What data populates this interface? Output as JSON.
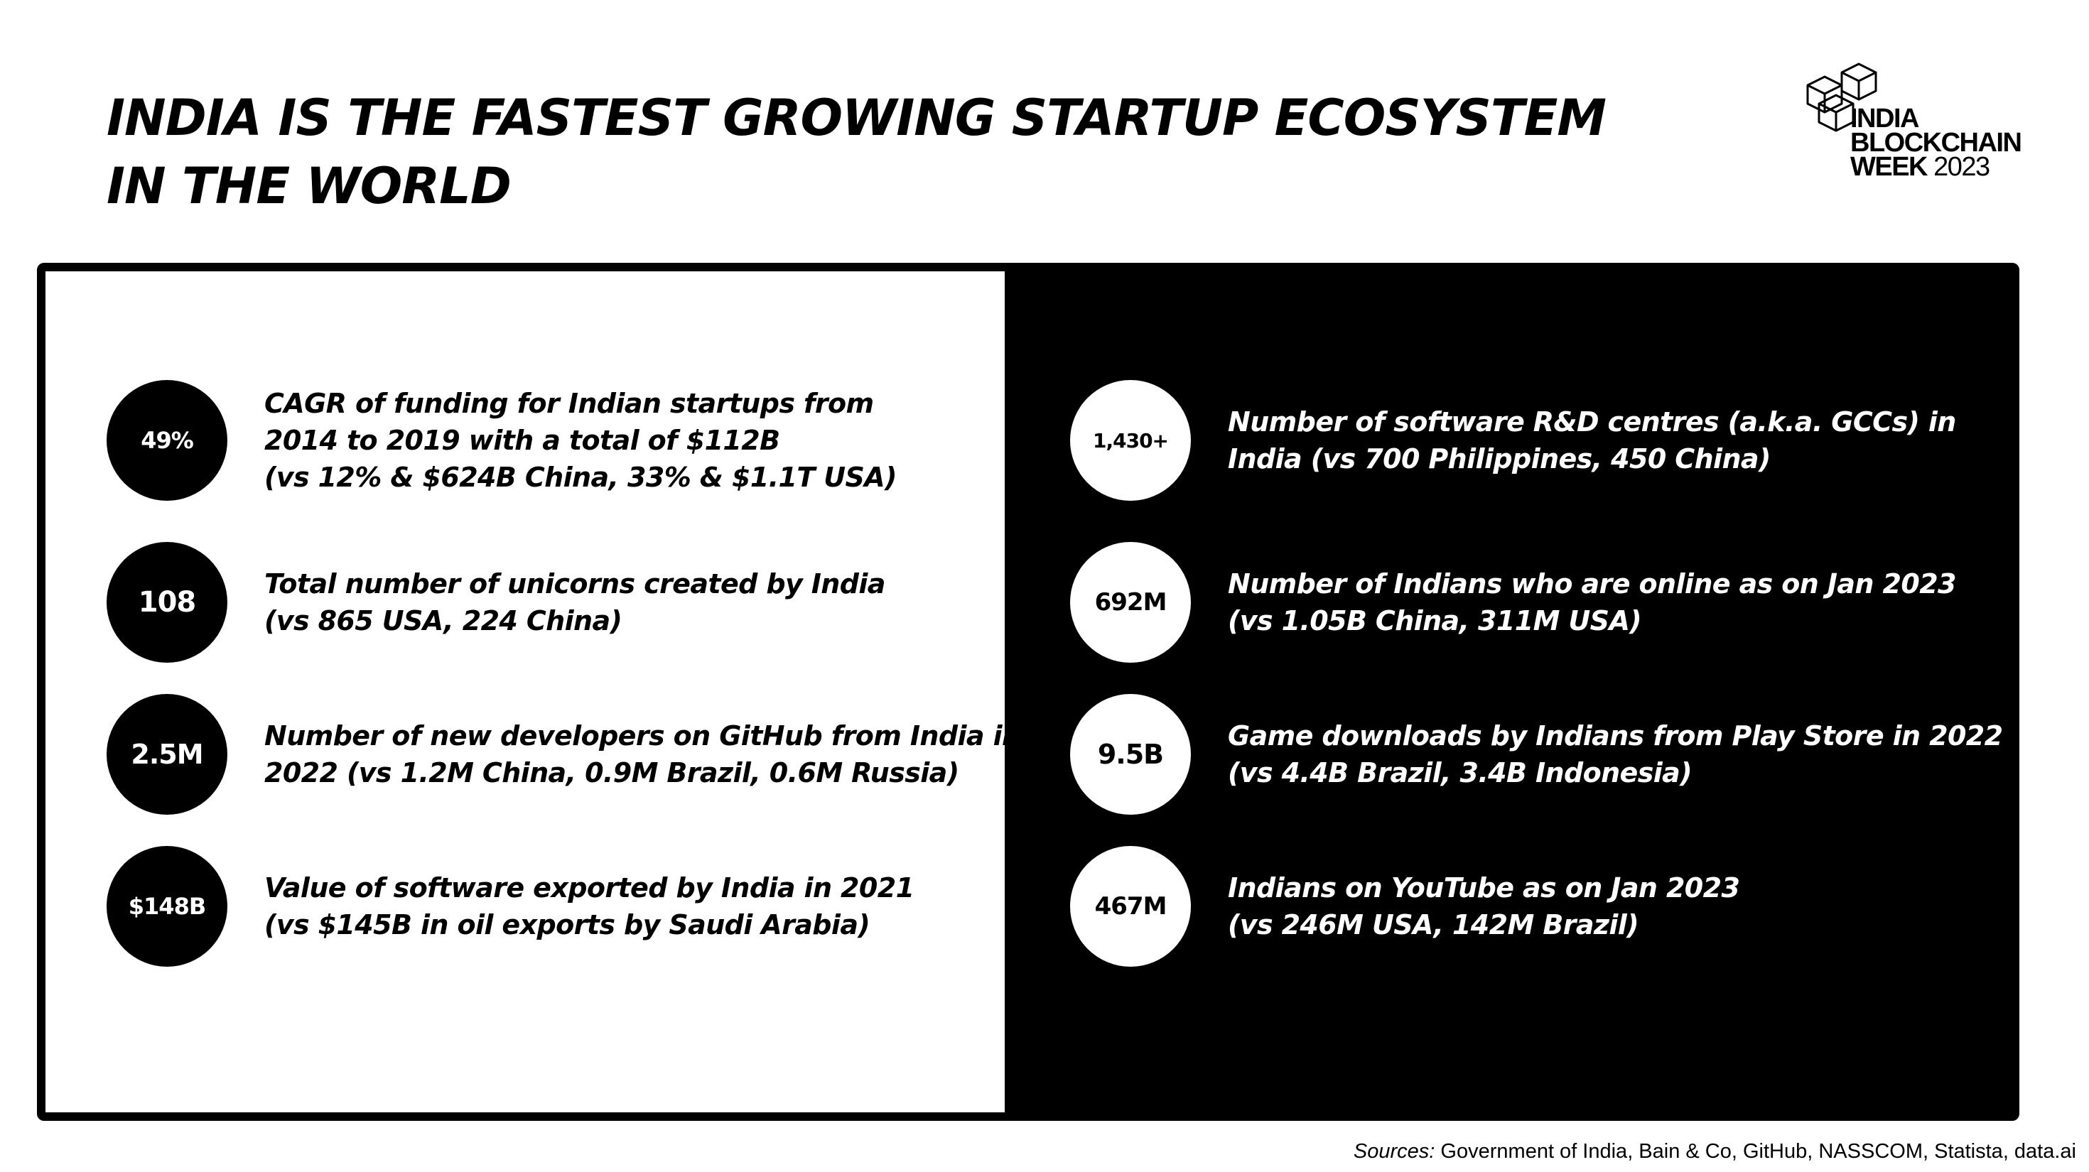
{
  "title": {
    "line1": "INDIA IS THE FASTEST GROWING STARTUP ECOSYSTEM",
    "line2": "IN THE WORLD"
  },
  "logo": {
    "line1": "INDIA",
    "line2": "BLOCKCHAIN",
    "line3_word": "WEEK",
    "line3_year": "2023",
    "icon": "cubes-icon"
  },
  "left_stats": [
    {
      "value": "49%",
      "lines": [
        "CAGR of funding for Indian startups from",
        "2014 to 2019 with a total of $112B",
        "(vs 12% & $624B China, 33% & $1.1T USA)"
      ]
    },
    {
      "value": "108",
      "lines": [
        "Total number of unicorns created by India",
        "(vs 865 USA, 224 China)"
      ]
    },
    {
      "value": "2.5M",
      "lines": [
        "Number of new developers on GitHub from India in",
        "2022 (vs 1.2M China, 0.9M Brazil, 0.6M Russia)"
      ]
    },
    {
      "value": "$148B",
      "lines": [
        "Value of software exported by India in 2021",
        "(vs $145B in oil exports by Saudi Arabia)"
      ]
    }
  ],
  "right_stats": [
    {
      "value": "1,430+",
      "lines": [
        "Number of software R&D centres (a.k.a. GCCs) in",
        "India (vs 700 Philippines, 450 China)"
      ]
    },
    {
      "value": "692M",
      "lines": [
        "Number of Indians who are online as on Jan 2023",
        "(vs 1.05B China, 311M USA)"
      ]
    },
    {
      "value": "9.5B",
      "lines": [
        "Game downloads by Indians from Play Store in 2022",
        "(vs 4.4B Brazil, 3.4B Indonesia)"
      ]
    },
    {
      "value": "467M",
      "lines": [
        "Indians on YouTube  as on Jan 2023",
        "(vs 246M USA, 142M Brazil)"
      ]
    }
  ],
  "sources": {
    "label": "Sources:",
    "text": " Government of India, Bain & Co, GitHub, NASSCOM, Statista, data.ai"
  }
}
